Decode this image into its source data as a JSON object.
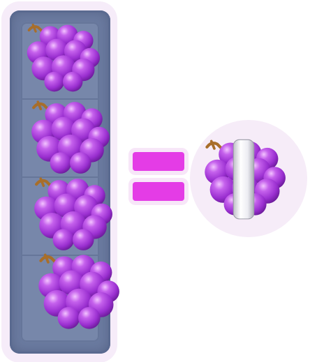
{
  "puzzle": {
    "inputs": [
      {
        "item": "grape-bunch"
      },
      {
        "item": "grape-bunch"
      },
      {
        "item": "grape-bunch"
      },
      {
        "item": "grape-bunch"
      }
    ],
    "operator": "equals-icon",
    "result": {
      "item": "grape-bunch",
      "state": "wrapped"
    }
  },
  "colors": {
    "grape": "#a63ad6",
    "grape_highlight": "#d58af0",
    "grape_shadow": "#6d1e9a",
    "stem": "#c08a3e",
    "column": "#6b7ba0",
    "equals": "#e43ce6",
    "band": "#e8e8ec"
  }
}
